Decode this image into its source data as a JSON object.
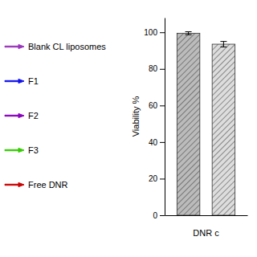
{
  "chart_data": {
    "type": "bar",
    "categories": [
      null,
      null
    ],
    "values": [
      99.5,
      93.5
    ],
    "errors": [
      0.8,
      1.5
    ],
    "colors": [
      "#bbbbbb",
      "#dddddd"
    ],
    "ylabel": "Viability %",
    "xlabel": "DNR c",
    "ylim": [
      0,
      108
    ],
    "yticks": [
      0,
      20,
      40,
      60,
      80,
      100
    ],
    "tick_labels": "y",
    "annotations": [
      {
        "text": "Blank CL liposomes",
        "color": "#9933bb"
      },
      {
        "text": "F1",
        "color": "#1111ee"
      },
      {
        "text": "F2",
        "color": "#8800bb"
      },
      {
        "text": "F3",
        "color": "#33cc00"
      },
      {
        "text": "Free DNR",
        "color": "#cc0000"
      }
    ]
  }
}
